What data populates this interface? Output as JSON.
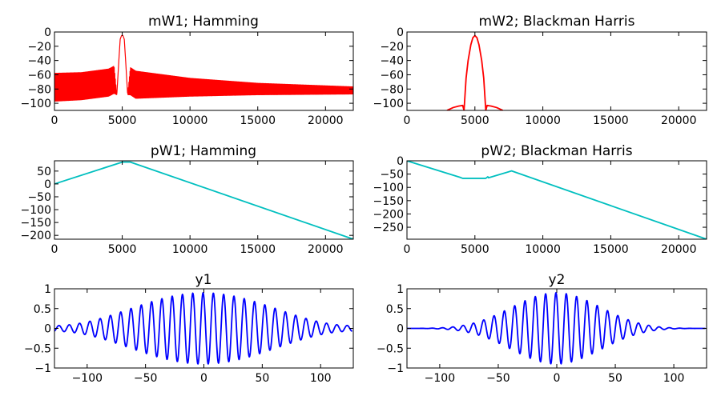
{
  "colors": {
    "magnitude": "#ff0000",
    "phase": "#00bfbf",
    "signal": "#0000ff",
    "background": "#ffffff"
  },
  "chart_data": [
    {
      "id": "mW1",
      "type": "line",
      "title": "mW1; Hamming",
      "xlim": [
        0,
        22050
      ],
      "ylim": [
        -110,
        0
      ],
      "xticks": [
        0,
        5000,
        10000,
        15000,
        20000
      ],
      "yticks": [
        0,
        -20,
        -40,
        -60,
        -80,
        -100
      ],
      "series": [
        {
          "color": "#ff0000",
          "x": [
            0,
            2000,
            4000,
            4400,
            4600,
            4750,
            4850,
            4950,
            5050,
            5150,
            5250,
            5400,
            5600,
            6000,
            10000,
            15000,
            22050
          ],
          "y_upper": [
            -58,
            -57,
            -52,
            -48,
            -88,
            -40,
            -10,
            -5,
            -5,
            -10,
            -40,
            -88,
            -50,
            -55,
            -65,
            -72,
            -77
          ],
          "y_lower": [
            -97,
            -95,
            -90,
            -86,
            -88,
            -40,
            -10,
            -5,
            -5,
            -10,
            -40,
            -88,
            -88,
            -93,
            -90,
            -88,
            -87
          ],
          "note": ""
        }
      ]
    },
    {
      "id": "mW2",
      "type": "line",
      "title": "mW2; Blackman Harris",
      "xlim": [
        0,
        22050
      ],
      "ylim": [
        -110,
        0
      ],
      "xticks": [
        0,
        5000,
        10000,
        15000,
        20000
      ],
      "yticks": [
        0,
        -20,
        -40,
        -60,
        -80,
        -100
      ],
      "series": [
        {
          "color": "#ff0000",
          "x": [
            2950,
            3400,
            3800,
            4100,
            4200,
            4350,
            4500,
            4700,
            4850,
            5000,
            5150,
            5300,
            5500,
            5650,
            5800,
            5900,
            6200,
            6600,
            7050
          ],
          "y": [
            -110,
            -106,
            -104,
            -103,
            -110,
            -65,
            -40,
            -18,
            -8,
            -5,
            -8,
            -18,
            -40,
            -65,
            -110,
            -103,
            -104,
            -106,
            -110
          ]
        }
      ]
    },
    {
      "id": "pW1",
      "type": "line",
      "title": "pW1; Hamming",
      "xlim": [
        0,
        22050
      ],
      "ylim": [
        -215,
        90
      ],
      "xticks": [
        0,
        5000,
        10000,
        15000,
        20000
      ],
      "yticks": [
        50,
        0,
        -50,
        -100,
        -150,
        -200
      ],
      "series": [
        {
          "color": "#00bfbf",
          "x": [
            0,
            5000,
            5600,
            22050
          ],
          "y": [
            0,
            85,
            85,
            -215
          ]
        }
      ]
    },
    {
      "id": "pW2",
      "type": "line",
      "title": "pW2; Blackman Harris",
      "xlim": [
        0,
        22050
      ],
      "ylim": [
        -295,
        0
      ],
      "xticks": [
        0,
        5000,
        10000,
        15000,
        20000
      ],
      "yticks": [
        0,
        -50,
        -100,
        -150,
        -200,
        -250
      ],
      "series": [
        {
          "color": "#00bfbf",
          "x": [
            0,
            3900,
            4100,
            5800,
            5950,
            6000,
            7700,
            22050
          ],
          "y": [
            0,
            -62,
            -66,
            -66,
            -60,
            -64,
            -38,
            -295
          ]
        }
      ]
    },
    {
      "id": "y1",
      "type": "line",
      "title": "y1",
      "xlim": [
        -128,
        128
      ],
      "ylim": [
        -1.0,
        1.0
      ],
      "xticks": [
        -100,
        -50,
        0,
        50,
        100
      ],
      "yticks": [
        1.0,
        0.5,
        0.0,
        -0.5,
        -1.0
      ],
      "series": [
        {
          "color": "#0000ff",
          "n_range": [
            -128,
            127
          ],
          "amplitude": 0.9,
          "frequency": 0.1134,
          "phase": 0.5,
          "envelope": "hamming"
        }
      ]
    },
    {
      "id": "y2",
      "type": "line",
      "title": "y2",
      "xlim": [
        -128,
        128
      ],
      "ylim": [
        -1.0,
        1.0
      ],
      "xticks": [
        -100,
        -50,
        0,
        50,
        100
      ],
      "yticks": [
        1.0,
        0.5,
        0.0,
        -0.5,
        -1.0
      ],
      "series": [
        {
          "color": "#0000ff",
          "n_range": [
            -128,
            127
          ],
          "amplitude": 0.9,
          "frequency": 0.1134,
          "phase": 0.5,
          "envelope": "blackman-harris"
        }
      ]
    }
  ]
}
